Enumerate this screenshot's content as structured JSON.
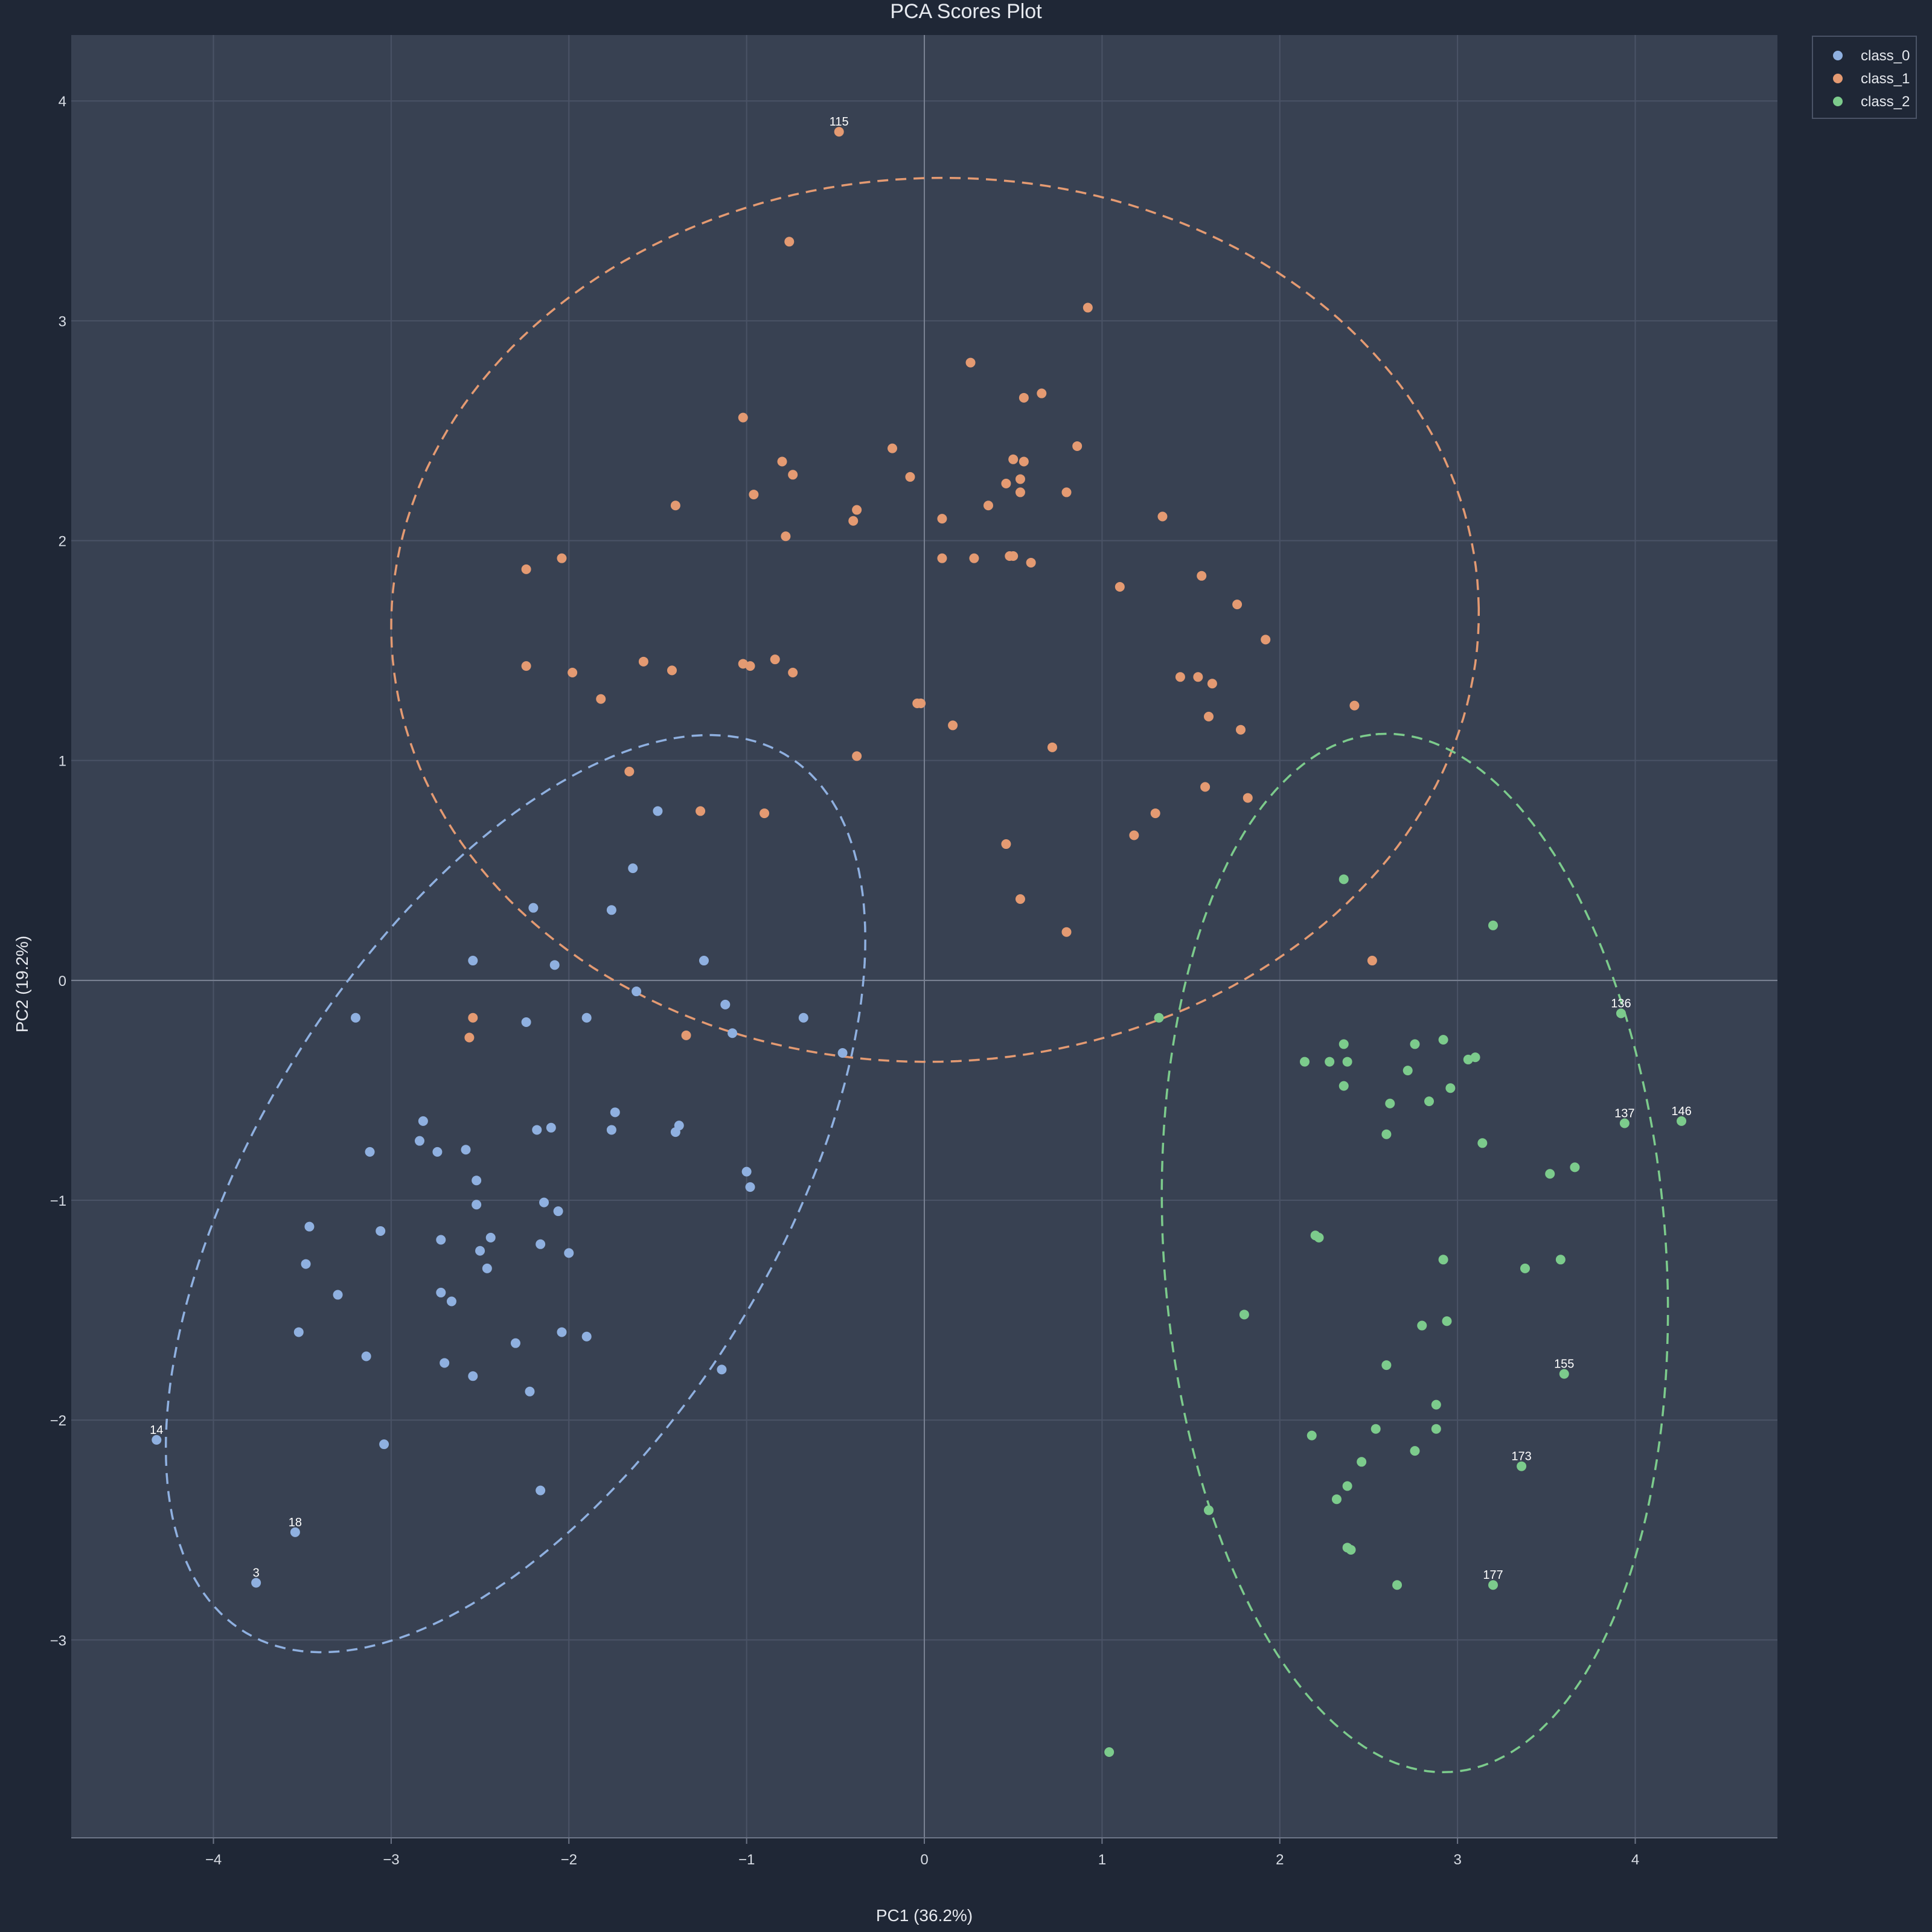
{
  "chart_data": {
    "type": "scatter",
    "title": "PCA Scores Plot",
    "xlabel": "PC1 (36.2%)",
    "ylabel": "PC2 (19.2%)",
    "xlim": [
      -4.8,
      4.8
    ],
    "ylim": [
      -3.9,
      4.3
    ],
    "xticks": [
      -4,
      -3,
      -2,
      -1,
      0,
      1,
      2,
      3,
      4
    ],
    "yticks": [
      -3,
      -2,
      -1,
      0,
      1,
      2,
      3,
      4
    ],
    "grid": true,
    "legend_position": "top-right",
    "colors": {
      "background": "#1f2736",
      "plot_background": "#384152",
      "grid": "#4a5366",
      "zero_line": "#7a8293"
    },
    "series": [
      {
        "name": "class_0",
        "color": "#8fb0e0",
        "points": [
          [
            -4.32,
            -2.09
          ],
          [
            -3.76,
            -2.74
          ],
          [
            -3.54,
            -2.51
          ],
          [
            -3.52,
            -1.6
          ],
          [
            -3.48,
            -1.29
          ],
          [
            -3.46,
            -1.12
          ],
          [
            -3.3,
            -1.43
          ],
          [
            -3.2,
            -0.17
          ],
          [
            -3.14,
            -1.71
          ],
          [
            -3.12,
            -0.78
          ],
          [
            -3.06,
            -1.14
          ],
          [
            -3.04,
            -2.11
          ],
          [
            -2.84,
            -0.73
          ],
          [
            -2.82,
            -0.64
          ],
          [
            -2.74,
            -0.78
          ],
          [
            -2.72,
            -1.42
          ],
          [
            -2.72,
            -1.18
          ],
          [
            -2.7,
            -1.74
          ],
          [
            -2.66,
            -1.46
          ],
          [
            -2.58,
            -0.77
          ],
          [
            -2.54,
            0.09
          ],
          [
            -2.54,
            -1.8
          ],
          [
            -2.52,
            -1.02
          ],
          [
            -2.52,
            -0.91
          ],
          [
            -2.5,
            -1.23
          ],
          [
            -2.46,
            -1.31
          ],
          [
            -2.44,
            -1.17
          ],
          [
            -2.3,
            -1.65
          ],
          [
            -2.24,
            -0.19
          ],
          [
            -2.22,
            -1.87
          ],
          [
            -2.2,
            0.33
          ],
          [
            -2.18,
            -0.68
          ],
          [
            -2.16,
            -1.2
          ],
          [
            -2.16,
            -2.32
          ],
          [
            -2.14,
            -1.01
          ],
          [
            -2.1,
            -0.67
          ],
          [
            -2.08,
            0.07
          ],
          [
            -2.06,
            -1.05
          ],
          [
            -2.04,
            -1.6
          ],
          [
            -2.0,
            -1.24
          ],
          [
            -1.9,
            -0.17
          ],
          [
            -1.9,
            -1.62
          ],
          [
            -1.76,
            0.32
          ],
          [
            -1.76,
            -0.68
          ],
          [
            -1.74,
            -0.6
          ],
          [
            -1.64,
            0.51
          ],
          [
            -1.62,
            -0.05
          ],
          [
            -1.5,
            0.77
          ],
          [
            -1.4,
            -0.69
          ],
          [
            -1.38,
            -0.66
          ],
          [
            -1.24,
            0.09
          ],
          [
            -1.14,
            -1.77
          ],
          [
            -1.12,
            -0.11
          ],
          [
            -1.08,
            -0.24
          ],
          [
            -1.0,
            -0.87
          ],
          [
            -0.98,
            -0.94
          ],
          [
            -0.68,
            -0.17
          ],
          [
            -0.46,
            -0.33
          ]
        ]
      },
      {
        "name": "class_1",
        "color": "#e49a72",
        "points": [
          [
            -0.48,
            3.86
          ],
          [
            -0.76,
            3.36
          ],
          [
            0.92,
            3.06
          ],
          [
            0.26,
            2.81
          ],
          [
            0.66,
            2.67
          ],
          [
            0.56,
            2.65
          ],
          [
            -1.02,
            2.56
          ],
          [
            0.86,
            2.43
          ],
          [
            -0.18,
            2.42
          ],
          [
            0.5,
            2.37
          ],
          [
            0.56,
            2.36
          ],
          [
            -0.8,
            2.36
          ],
          [
            -0.74,
            2.3
          ],
          [
            -0.08,
            2.29
          ],
          [
            0.54,
            2.28
          ],
          [
            0.46,
            2.26
          ],
          [
            0.8,
            2.22
          ],
          [
            0.54,
            2.22
          ],
          [
            -0.96,
            2.21
          ],
          [
            -1.4,
            2.16
          ],
          [
            0.36,
            2.16
          ],
          [
            -0.38,
            2.14
          ],
          [
            1.34,
            2.11
          ],
          [
            0.1,
            2.1
          ],
          [
            -0.4,
            2.09
          ],
          [
            -0.78,
            2.02
          ],
          [
            -2.24,
            1.87
          ],
          [
            -2.04,
            1.92
          ],
          [
            0.48,
            1.93
          ],
          [
            0.5,
            1.93
          ],
          [
            0.1,
            1.92
          ],
          [
            0.28,
            1.92
          ],
          [
            0.6,
            1.9
          ],
          [
            1.56,
            1.84
          ],
          [
            1.1,
            1.79
          ],
          [
            1.76,
            1.71
          ],
          [
            1.92,
            1.55
          ],
          [
            -2.24,
            1.43
          ],
          [
            -1.98,
            1.4
          ],
          [
            -1.58,
            1.45
          ],
          [
            -1.42,
            1.41
          ],
          [
            -1.02,
            1.44
          ],
          [
            -0.98,
            1.43
          ],
          [
            -0.84,
            1.46
          ],
          [
            -0.74,
            1.4
          ],
          [
            1.44,
            1.38
          ],
          [
            1.54,
            1.38
          ],
          [
            1.62,
            1.35
          ],
          [
            -1.82,
            1.28
          ],
          [
            -0.04,
            1.26
          ],
          [
            -0.02,
            1.26
          ],
          [
            2.42,
            1.25
          ],
          [
            1.6,
            1.2
          ],
          [
            0.16,
            1.16
          ],
          [
            1.78,
            1.14
          ],
          [
            0.72,
            1.06
          ],
          [
            -0.38,
            1.02
          ],
          [
            -1.66,
            0.95
          ],
          [
            1.58,
            0.88
          ],
          [
            1.82,
            0.83
          ],
          [
            -1.26,
            0.77
          ],
          [
            -0.9,
            0.76
          ],
          [
            1.3,
            0.76
          ],
          [
            1.18,
            0.66
          ],
          [
            0.46,
            0.62
          ],
          [
            0.54,
            0.37
          ],
          [
            0.8,
            0.22
          ],
          [
            2.52,
            0.09
          ],
          [
            -2.54,
            -0.17
          ],
          [
            -2.56,
            -0.26
          ],
          [
            -1.34,
            -0.25
          ]
        ]
      },
      {
        "name": "class_2",
        "color": "#7ccb8c",
        "points": [
          [
            3.92,
            -0.15
          ],
          [
            3.94,
            -0.65
          ],
          [
            4.26,
            -0.64
          ],
          [
            3.6,
            -1.79
          ],
          [
            3.36,
            -2.21
          ],
          [
            3.2,
            -2.75
          ],
          [
            2.36,
            0.46
          ],
          [
            3.2,
            0.25
          ],
          [
            1.32,
            -0.17
          ],
          [
            2.14,
            -0.37
          ],
          [
            2.28,
            -0.37
          ],
          [
            2.36,
            -0.29
          ],
          [
            2.38,
            -0.37
          ],
          [
            2.36,
            -0.48
          ],
          [
            2.76,
            -0.29
          ],
          [
            2.92,
            -0.27
          ],
          [
            3.06,
            -0.36
          ],
          [
            3.1,
            -0.35
          ],
          [
            2.72,
            -0.41
          ],
          [
            2.96,
            -0.49
          ],
          [
            2.62,
            -0.56
          ],
          [
            2.84,
            -0.55
          ],
          [
            2.6,
            -0.7
          ],
          [
            3.14,
            -0.74
          ],
          [
            3.52,
            -0.88
          ],
          [
            3.66,
            -0.85
          ],
          [
            2.2,
            -1.16
          ],
          [
            2.22,
            -1.17
          ],
          [
            2.92,
            -1.27
          ],
          [
            3.38,
            -1.31
          ],
          [
            3.58,
            -1.27
          ],
          [
            1.8,
            -1.52
          ],
          [
            2.8,
            -1.57
          ],
          [
            2.94,
            -1.55
          ],
          [
            2.6,
            -1.75
          ],
          [
            2.88,
            -1.93
          ],
          [
            2.54,
            -2.04
          ],
          [
            2.88,
            -2.04
          ],
          [
            2.18,
            -2.07
          ],
          [
            2.76,
            -2.14
          ],
          [
            2.46,
            -2.19
          ],
          [
            2.38,
            -2.3
          ],
          [
            2.32,
            -2.36
          ],
          [
            1.6,
            -2.41
          ],
          [
            2.38,
            -2.58
          ],
          [
            2.4,
            -2.59
          ],
          [
            2.66,
            -2.75
          ],
          [
            1.04,
            -3.51
          ]
        ]
      }
    ],
    "point_labels": [
      {
        "text": "115",
        "x": -0.48,
        "y": 3.86
      },
      {
        "text": "14",
        "x": -4.32,
        "y": -2.09
      },
      {
        "text": "18",
        "x": -3.54,
        "y": -2.51
      },
      {
        "text": "3",
        "x": -3.76,
        "y": -2.74
      },
      {
        "text": "136",
        "x": 3.92,
        "y": -0.15
      },
      {
        "text": "137",
        "x": 3.94,
        "y": -0.65
      },
      {
        "text": "146",
        "x": 4.26,
        "y": -0.64
      },
      {
        "text": "155",
        "x": 3.6,
        "y": -1.79
      },
      {
        "text": "173",
        "x": 3.36,
        "y": -2.21
      },
      {
        "text": "177",
        "x": 3.2,
        "y": -2.75
      }
    ],
    "ellipses": [
      {
        "series": "class_0",
        "center": [
          -2.3,
          -0.97
        ],
        "semi_major": 2.53,
        "semi_minor": 1.35,
        "angle_deg": 48
      },
      {
        "series": "class_1",
        "center": [
          0.06,
          1.64
        ],
        "semi_major": 3.06,
        "semi_minor": 2.01,
        "angle_deg": 1
      },
      {
        "series": "class_2",
        "center": [
          2.76,
          -1.24
        ],
        "semi_major": 2.37,
        "semi_minor": 1.41,
        "angle_deg": 96
      }
    ]
  }
}
